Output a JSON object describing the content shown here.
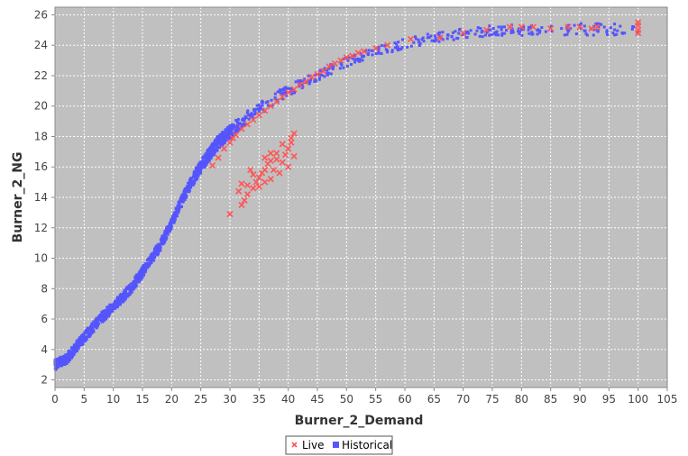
{
  "chart_data": {
    "type": "scatter",
    "xlabel": "Burner_2_Demand",
    "ylabel": "Burner_2_NG",
    "xlim": [
      0,
      105
    ],
    "ylim": [
      1.5,
      26.5
    ],
    "x_ticks": [
      0,
      5,
      10,
      15,
      20,
      25,
      30,
      35,
      40,
      45,
      50,
      55,
      60,
      65,
      70,
      75,
      80,
      85,
      90,
      95,
      100,
      105
    ],
    "y_ticks": [
      2,
      4,
      6,
      8,
      10,
      12,
      14,
      16,
      18,
      20,
      22,
      24,
      26
    ],
    "grid": true,
    "legend_position": "bottom-center",
    "background": "#c0c0c0",
    "series": [
      {
        "name": "Live",
        "marker": "x",
        "color": "#ff5555",
        "points": [
          [
            27,
            16.1
          ],
          [
            28,
            16.6
          ],
          [
            29,
            17.2
          ],
          [
            30,
            17.6
          ],
          [
            30.5,
            17.9
          ],
          [
            31,
            18.1
          ],
          [
            32,
            18.5
          ],
          [
            33,
            18.8
          ],
          [
            34,
            19.1
          ],
          [
            35,
            19.4
          ],
          [
            36,
            19.7
          ],
          [
            37,
            20.0
          ],
          [
            38,
            20.3
          ],
          [
            39,
            20.6
          ],
          [
            40,
            20.9
          ],
          [
            41,
            21.1
          ],
          [
            42,
            21.4
          ],
          [
            43,
            21.6
          ],
          [
            44,
            21.9
          ],
          [
            45,
            22.1
          ],
          [
            46,
            22.3
          ],
          [
            47,
            22.6
          ],
          [
            48,
            22.8
          ],
          [
            49,
            23.0
          ],
          [
            50,
            23.2
          ],
          [
            51,
            23.3
          ],
          [
            52,
            23.5
          ],
          [
            53,
            23.6
          ],
          [
            55,
            23.8
          ],
          [
            57,
            24.0
          ],
          [
            61,
            24.4
          ],
          [
            66,
            24.5
          ],
          [
            70,
            24.8
          ],
          [
            74,
            25.0
          ],
          [
            78,
            25.2
          ],
          [
            80,
            25.2
          ],
          [
            82,
            25.2
          ],
          [
            85,
            25.1
          ],
          [
            88,
            25.2
          ],
          [
            90,
            25.2
          ],
          [
            92,
            25.1
          ],
          [
            93,
            25.2
          ],
          [
            100,
            25.5
          ],
          [
            100,
            25.3
          ],
          [
            100,
            25.0
          ],
          [
            100,
            24.8
          ],
          [
            30,
            12.9
          ],
          [
            32,
            13.5
          ],
          [
            32.5,
            13.8
          ],
          [
            33,
            14.2
          ],
          [
            33,
            14.8
          ],
          [
            34,
            14.6
          ],
          [
            34.5,
            15.0
          ],
          [
            35,
            14.7
          ],
          [
            35,
            15.3
          ],
          [
            35.5,
            15.6
          ],
          [
            36,
            15.0
          ],
          [
            36,
            15.8
          ],
          [
            36.5,
            16.2
          ],
          [
            37,
            15.2
          ],
          [
            37,
            16.4
          ],
          [
            37.5,
            15.8
          ],
          [
            38,
            16.5
          ],
          [
            38,
            16.9
          ],
          [
            38.5,
            15.6
          ],
          [
            39,
            16.3
          ],
          [
            39.5,
            16.8
          ],
          [
            40,
            17.2
          ],
          [
            40,
            16.0
          ],
          [
            40.5,
            17.6
          ],
          [
            40.5,
            17.9
          ],
          [
            41,
            18.2
          ],
          [
            41,
            16.7
          ],
          [
            34,
            15.5
          ],
          [
            33.5,
            15.8
          ],
          [
            32,
            14.9
          ],
          [
            36,
            16.6
          ],
          [
            37,
            16.9
          ],
          [
            39,
            17.5
          ],
          [
            31.5,
            14.4
          ]
        ]
      },
      {
        "name": "Historical",
        "marker": "square",
        "color": "#5555ff",
        "curve": [
          [
            0,
            3.0
          ],
          [
            2,
            3.4
          ],
          [
            5,
            4.8
          ],
          [
            8,
            6.1
          ],
          [
            10,
            6.8
          ],
          [
            13,
            8.0
          ],
          [
            15,
            9.1
          ],
          [
            18,
            10.8
          ],
          [
            20,
            12.3
          ],
          [
            22,
            14.0
          ],
          [
            24,
            15.4
          ],
          [
            26,
            16.6
          ],
          [
            28,
            17.6
          ],
          [
            30,
            18.3
          ],
          [
            32,
            19.0
          ],
          [
            35,
            19.8
          ],
          [
            38,
            20.6
          ],
          [
            40,
            21.0
          ],
          [
            45,
            22.0
          ],
          [
            50,
            22.9
          ],
          [
            55,
            23.6
          ],
          [
            60,
            24.1
          ],
          [
            65,
            24.5
          ],
          [
            70,
            24.8
          ],
          [
            75,
            24.95
          ],
          [
            80,
            25.0
          ],
          [
            85,
            25.05
          ],
          [
            90,
            25.05
          ],
          [
            95,
            25.05
          ],
          [
            100,
            25.0
          ]
        ],
        "spread": [
          [
            0,
            0.35
          ],
          [
            20,
            0.35
          ],
          [
            27,
            0.45
          ],
          [
            35,
            0.4
          ],
          [
            50,
            0.3
          ],
          [
            70,
            0.35
          ],
          [
            100,
            0.4
          ]
        ]
      }
    ]
  }
}
